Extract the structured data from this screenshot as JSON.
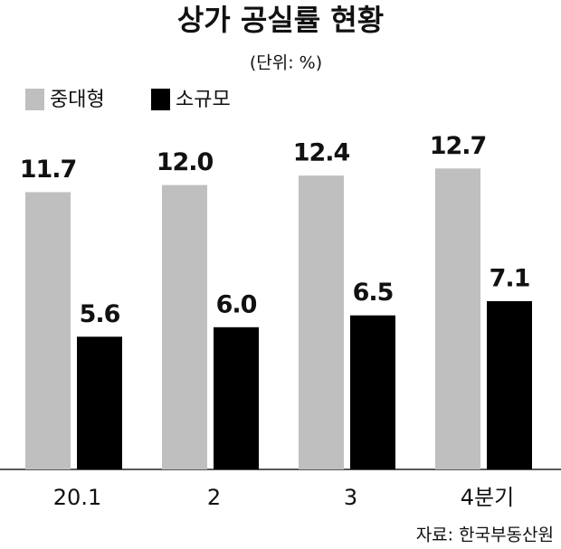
{
  "chart_data": {
    "type": "bar",
    "title": "상가 공실률 현황",
    "subtitle": "(단위: %)",
    "categories": [
      "20.1",
      "2",
      "3",
      "4분기"
    ],
    "series": [
      {
        "name": "중대형",
        "color": "#bfbfbf",
        "values": [
          11.7,
          12.0,
          12.4,
          12.7
        ],
        "value_labels": [
          "11.7",
          "12.0",
          "12.4",
          "12.7"
        ]
      },
      {
        "name": "소규모",
        "color": "#000000",
        "values": [
          5.6,
          6.0,
          6.5,
          7.1
        ],
        "value_labels": [
          "5.6",
          "6.0",
          "6.5",
          "7.1"
        ]
      }
    ],
    "source": "자료: 한국부동산원"
  }
}
